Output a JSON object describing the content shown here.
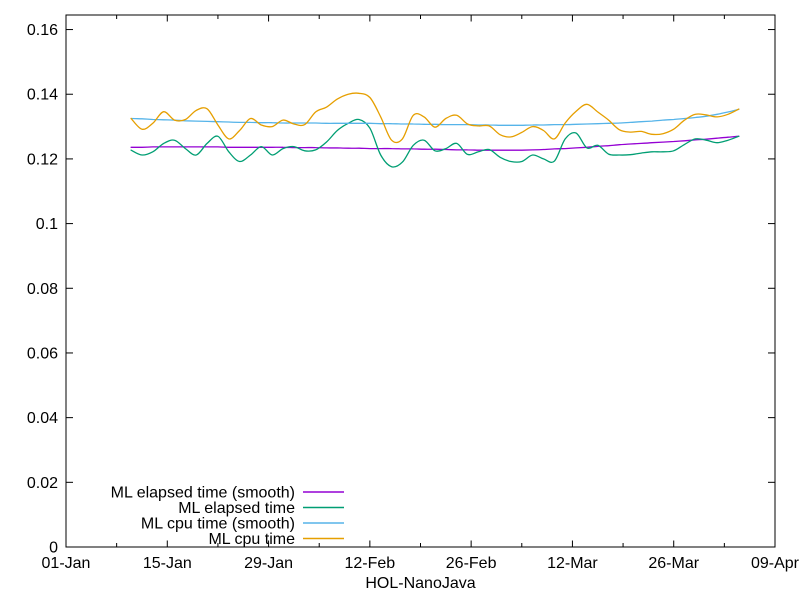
{
  "chart_data": {
    "type": "line",
    "title": "",
    "xlabel": "HOL-NanoJava",
    "ylabel": "",
    "x_axis_unit": "days since 01-Jan",
    "xlim_days": [
      0,
      98
    ],
    "x_tick_days": [
      0,
      14,
      28,
      42,
      56,
      70,
      84,
      98
    ],
    "x_tick_labels": [
      "01-Jan",
      "15-Jan",
      "29-Jan",
      "12-Feb",
      "26-Feb",
      "12-Mar",
      "26-Mar",
      "09-Apr"
    ],
    "x_minor_tick_days": [
      7,
      21,
      35,
      49,
      63,
      77,
      91
    ],
    "ylim": [
      0,
      0.1645
    ],
    "y_ticks": [
      0,
      0.02,
      0.04,
      0.06,
      0.08,
      0.1,
      0.12,
      0.14,
      0.16
    ],
    "y_tick_labels": [
      "0",
      "0.02",
      "0.04",
      "0.06",
      "0.08",
      "0.1",
      "0.12",
      "0.14",
      "0.16"
    ],
    "grid": false,
    "legend_position": "bottom-left-inside",
    "sample_days": [
      9,
      10.5,
      12,
      13.5,
      15,
      16.5,
      18,
      19.5,
      21,
      22.5,
      24,
      25.5,
      27,
      28.5,
      30,
      31.5,
      33,
      34.5,
      36,
      37.5,
      39,
      40.5,
      42,
      43.5,
      45,
      46.5,
      48,
      49.5,
      51,
      52.5,
      54,
      55.5,
      57,
      58.5,
      60,
      61.5,
      63,
      64.5,
      66,
      67.5,
      69,
      70.5,
      72,
      73.5,
      75,
      76.5,
      78,
      79.5,
      81,
      82.5,
      84,
      85.5,
      87,
      88.5,
      90,
      91.5,
      93
    ],
    "series": [
      {
        "name": "ML elapsed time (smooth)",
        "color": "#9400d3",
        "values": [
          0.1236,
          0.1236,
          0.1237,
          0.1237,
          0.1237,
          0.1237,
          0.1237,
          0.1237,
          0.1237,
          0.1236,
          0.1236,
          0.1236,
          0.1236,
          0.1236,
          0.1236,
          0.1235,
          0.1235,
          0.1235,
          0.1234,
          0.1234,
          0.1233,
          0.1233,
          0.1232,
          0.1232,
          0.1232,
          0.1231,
          0.1231,
          0.123,
          0.123,
          0.1229,
          0.1228,
          0.1228,
          0.1227,
          0.1227,
          0.1227,
          0.1227,
          0.1227,
          0.1228,
          0.1229,
          0.1231,
          0.1232,
          0.1234,
          0.1236,
          0.1239,
          0.1241,
          0.1244,
          0.1246,
          0.1248,
          0.125,
          0.1252,
          0.1254,
          0.1256,
          0.1259,
          0.1261,
          0.1264,
          0.1267,
          0.127
        ]
      },
      {
        "name": "ML elapsed time",
        "color": "#009e73",
        "values": [
          0.1227,
          0.1212,
          0.1222,
          0.1248,
          0.1258,
          0.1232,
          0.1212,
          0.1248,
          0.127,
          0.1222,
          0.1192,
          0.1212,
          0.1238,
          0.1212,
          0.1232,
          0.1238,
          0.1225,
          0.1228,
          0.1252,
          0.1288,
          0.131,
          0.1322,
          0.1295,
          0.1212,
          0.1176,
          0.119,
          0.1242,
          0.1258,
          0.1225,
          0.1232,
          0.1248,
          0.1214,
          0.1222,
          0.1229,
          0.1205,
          0.1192,
          0.1192,
          0.1212,
          0.12,
          0.1193,
          0.1262,
          0.128,
          0.1234,
          0.1242,
          0.1215,
          0.1212,
          0.1213,
          0.1218,
          0.1222,
          0.1222,
          0.1225,
          0.1245,
          0.1262,
          0.1258,
          0.125,
          0.1258,
          0.127
        ]
      },
      {
        "name": "ML cpu time (smooth)",
        "color": "#56b4e9",
        "values": [
          0.1325,
          0.1324,
          0.1322,
          0.1321,
          0.132,
          0.1318,
          0.1317,
          0.1316,
          0.1315,
          0.1314,
          0.1313,
          0.1313,
          0.1312,
          0.1312,
          0.1311,
          0.1311,
          0.1311,
          0.1311,
          0.131,
          0.131,
          0.131,
          0.131,
          0.131,
          0.1309,
          0.1309,
          0.1308,
          0.1308,
          0.1307,
          0.1307,
          0.1306,
          0.1306,
          0.1306,
          0.1305,
          0.1305,
          0.1304,
          0.1304,
          0.1304,
          0.1305,
          0.1305,
          0.1306,
          0.1306,
          0.1307,
          0.1308,
          0.1309,
          0.131,
          0.1311,
          0.1313,
          0.1315,
          0.1317,
          0.132,
          0.1322,
          0.1325,
          0.1328,
          0.1332,
          0.1338,
          0.1345,
          0.1353
        ]
      },
      {
        "name": "ML cpu time",
        "color": "#e69f00",
        "values": [
          0.1325,
          0.1292,
          0.131,
          0.1346,
          0.132,
          0.1322,
          0.135,
          0.1355,
          0.1305,
          0.1262,
          0.1288,
          0.1325,
          0.1305,
          0.13,
          0.132,
          0.1308,
          0.1306,
          0.1345,
          0.136,
          0.1385,
          0.14,
          0.1403,
          0.139,
          0.133,
          0.1258,
          0.1262,
          0.1335,
          0.133,
          0.1298,
          0.1325,
          0.1335,
          0.1308,
          0.1302,
          0.1302,
          0.1275,
          0.1268,
          0.1282,
          0.13,
          0.1288,
          0.1262,
          0.1311,
          0.1347,
          0.1369,
          0.1345,
          0.132,
          0.129,
          0.1283,
          0.1285,
          0.1276,
          0.1278,
          0.1292,
          0.132,
          0.1338,
          0.1336,
          0.133,
          0.1338,
          0.1354
        ]
      }
    ]
  },
  "colors": {
    "background": "#ffffff",
    "axis": "#000000",
    "text": "#000000"
  }
}
